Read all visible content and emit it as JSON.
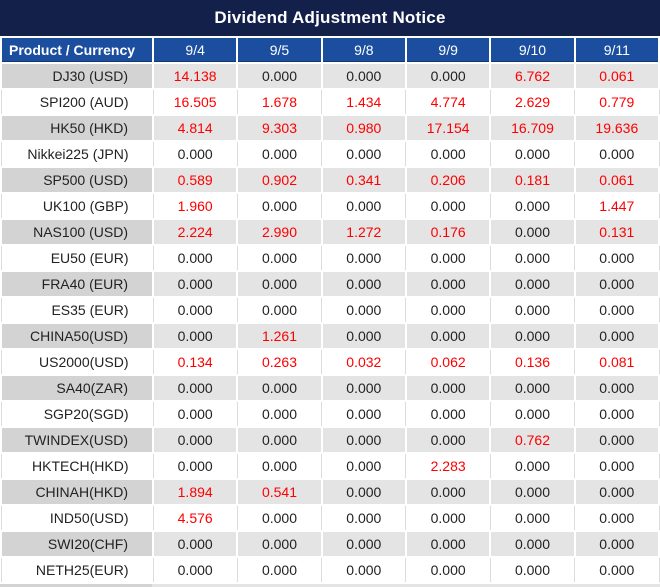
{
  "title": "Dividend Adjustment Notice",
  "columns": [
    "Product / Currency",
    "9/4",
    "9/5",
    "9/8",
    "9/9",
    "9/10",
    "9/11"
  ],
  "zero_value": "0.000",
  "rows": [
    {
      "product": "DJ30 (USD)",
      "values": [
        "14.138",
        "0.000",
        "0.000",
        "0.000",
        "6.762",
        "0.061"
      ]
    },
    {
      "product": "SPI200 (AUD)",
      "values": [
        "16.505",
        "1.678",
        "1.434",
        "4.774",
        "2.629",
        "0.779"
      ]
    },
    {
      "product": "HK50 (HKD)",
      "values": [
        "4.814",
        "9.303",
        "0.980",
        "17.154",
        "16.709",
        "19.636"
      ]
    },
    {
      "product": "Nikkei225 (JPN)",
      "values": [
        "0.000",
        "0.000",
        "0.000",
        "0.000",
        "0.000",
        "0.000"
      ]
    },
    {
      "product": "SP500 (USD)",
      "values": [
        "0.589",
        "0.902",
        "0.341",
        "0.206",
        "0.181",
        "0.061"
      ]
    },
    {
      "product": "UK100 (GBP)",
      "values": [
        "1.960",
        "0.000",
        "0.000",
        "0.000",
        "0.000",
        "1.447"
      ]
    },
    {
      "product": "NAS100 (USD)",
      "values": [
        "2.224",
        "2.990",
        "1.272",
        "0.176",
        "0.000",
        "0.131"
      ]
    },
    {
      "product": "EU50 (EUR)",
      "values": [
        "0.000",
        "0.000",
        "0.000",
        "0.000",
        "0.000",
        "0.000"
      ]
    },
    {
      "product": "FRA40 (EUR)",
      "values": [
        "0.000",
        "0.000",
        "0.000",
        "0.000",
        "0.000",
        "0.000"
      ]
    },
    {
      "product": "ES35 (EUR)",
      "values": [
        "0.000",
        "0.000",
        "0.000",
        "0.000",
        "0.000",
        "0.000"
      ]
    },
    {
      "product": "CHINA50(USD)",
      "values": [
        "0.000",
        "1.261",
        "0.000",
        "0.000",
        "0.000",
        "0.000"
      ]
    },
    {
      "product": "US2000(USD)",
      "values": [
        "0.134",
        "0.263",
        "0.032",
        "0.062",
        "0.136",
        "0.081"
      ]
    },
    {
      "product": "SA40(ZAR)",
      "values": [
        "0.000",
        "0.000",
        "0.000",
        "0.000",
        "0.000",
        "0.000"
      ]
    },
    {
      "product": "SGP20(SGD)",
      "values": [
        "0.000",
        "0.000",
        "0.000",
        "0.000",
        "0.000",
        "0.000"
      ]
    },
    {
      "product": "TWINDEX(USD)",
      "values": [
        "0.000",
        "0.000",
        "0.000",
        "0.000",
        "0.762",
        "0.000"
      ]
    },
    {
      "product": "HKTECH(HKD)",
      "values": [
        "0.000",
        "0.000",
        "0.000",
        "2.283",
        "0.000",
        "0.000"
      ]
    },
    {
      "product": "CHINAH(HKD)",
      "values": [
        "1.894",
        "0.541",
        "0.000",
        "0.000",
        "0.000",
        "0.000"
      ]
    },
    {
      "product": "IND50(USD)",
      "values": [
        "4.576",
        "0.000",
        "0.000",
        "0.000",
        "0.000",
        "0.000"
      ]
    },
    {
      "product": "SWI20(CHF)",
      "values": [
        "0.000",
        "0.000",
        "0.000",
        "0.000",
        "0.000",
        "0.000"
      ]
    },
    {
      "product": "NETH25(EUR)",
      "values": [
        "0.000",
        "0.000",
        "0.000",
        "0.000",
        "0.000",
        "0.000"
      ]
    }
  ],
  "colors": {
    "title_bg": "#12204a",
    "header_bg": "#1b4e9e",
    "header_edge": "#16366e",
    "shaded_row_label_bg": "#d3d3d3",
    "shaded_row_value_bg": "#e4e4e4",
    "plain_row_bg": "#ffffff",
    "gridline": "#dcdcdc",
    "nonzero_value_text": "#ff0000",
    "zero_value_text": "#222222",
    "header_text": "#ffffff"
  }
}
